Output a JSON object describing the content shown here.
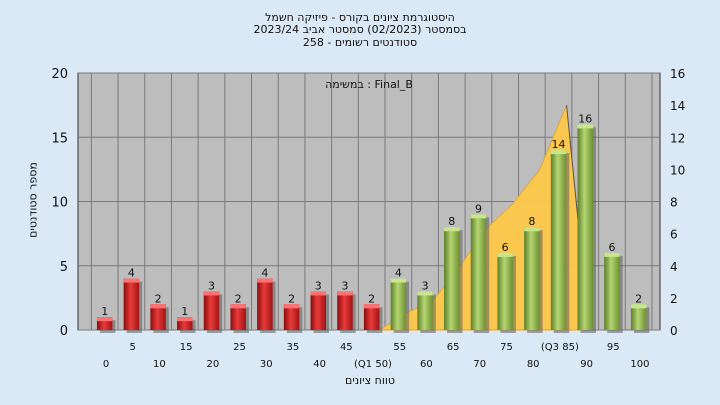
{
  "title_lines": [
    "היסטוגרמת ציונים בקורס - פיזיקה חשמל",
    "בסמסטר  (02/2023)  סמסטר אביב 2023/24",
    "סטודנטים רשומים - 258"
  ],
  "chart_data": {
    "type": "bar",
    "legend_text": "במשימה : Final_B",
    "xlabel": "טווח ציונים",
    "ylabel": "מספר סטודנטים",
    "ylim": [
      0,
      20
    ],
    "y2lim": [
      0,
      16
    ],
    "left_ticks": [
      "0",
      "5",
      "10",
      "15",
      "20"
    ],
    "right_ticks": [
      "0",
      "2",
      "4",
      "6",
      "8",
      "10",
      "12",
      "14",
      "16"
    ],
    "x_tick_row1": [
      "5",
      "15",
      "25",
      "35",
      "45",
      "55",
      "65",
      "75",
      "(Q3 85)",
      "95"
    ],
    "x_tick_row2": [
      "0",
      "10",
      "20",
      "30",
      "40",
      "(Q1 50)",
      "60",
      "70",
      "80",
      "90",
      "100"
    ],
    "categories": [
      "0",
      "5",
      "10",
      "15",
      "20",
      "25",
      "30",
      "35",
      "40",
      "45",
      "50",
      "55",
      "60",
      "65",
      "70",
      "75",
      "80",
      "85",
      "90",
      "95",
      "100"
    ],
    "values": [
      1,
      4,
      2,
      1,
      3,
      2,
      4,
      2,
      3,
      3,
      2,
      4,
      3,
      8,
      9,
      6,
      8,
      14,
      16,
      6,
      2
    ],
    "bar_colors": {
      "fail": "#d42020",
      "pass": "#8fb84a"
    },
    "pass_from_index": 11,
    "area_color": "#ffc94a",
    "grid": true
  }
}
